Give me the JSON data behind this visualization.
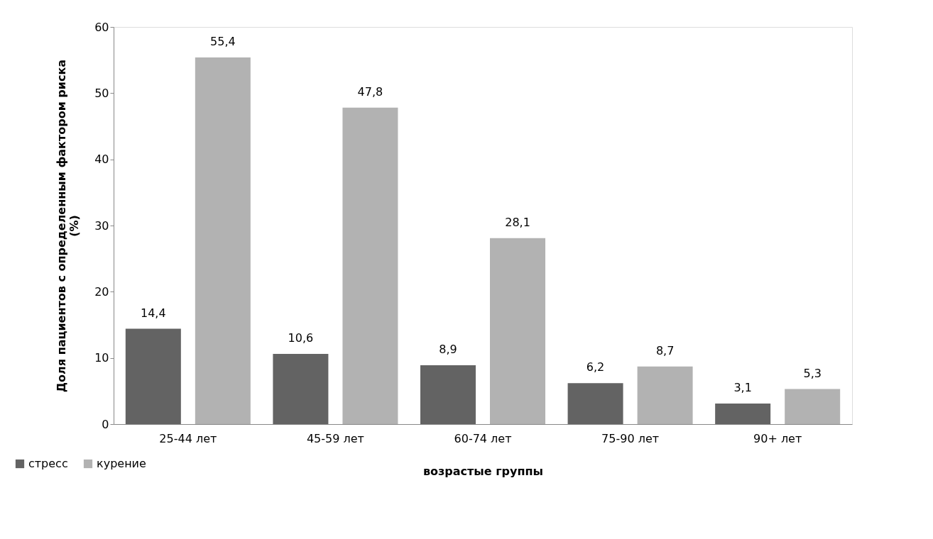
{
  "chart_data": {
    "type": "bar",
    "xlabel": "возрастые группы",
    "ylabel": "Доля пациентов с определенным фактором риска (%)",
    "categories": [
      "25-44 лет",
      "45-59 лет",
      "60-74 лет",
      "75-90 лет",
      "90+ лет"
    ],
    "series": [
      {
        "name": "стресс",
        "color": "#636363",
        "values": [
          14.4,
          10.6,
          8.9,
          6.2,
          3.1
        ],
        "value_labels": [
          "14,4",
          "10,6",
          "8,9",
          "6,2",
          "3,1"
        ]
      },
      {
        "name": "курение",
        "color": "#b2b2b2",
        "values": [
          55.4,
          47.8,
          28.1,
          8.7,
          5.3
        ],
        "value_labels": [
          "55,4",
          "47,8",
          "28,1",
          "8,7",
          "5,3"
        ]
      }
    ],
    "ylim": [
      0,
      60
    ],
    "yticks": [
      0,
      10,
      20,
      30,
      40,
      50,
      60
    ],
    "grid": false,
    "legend": "bottom left"
  }
}
